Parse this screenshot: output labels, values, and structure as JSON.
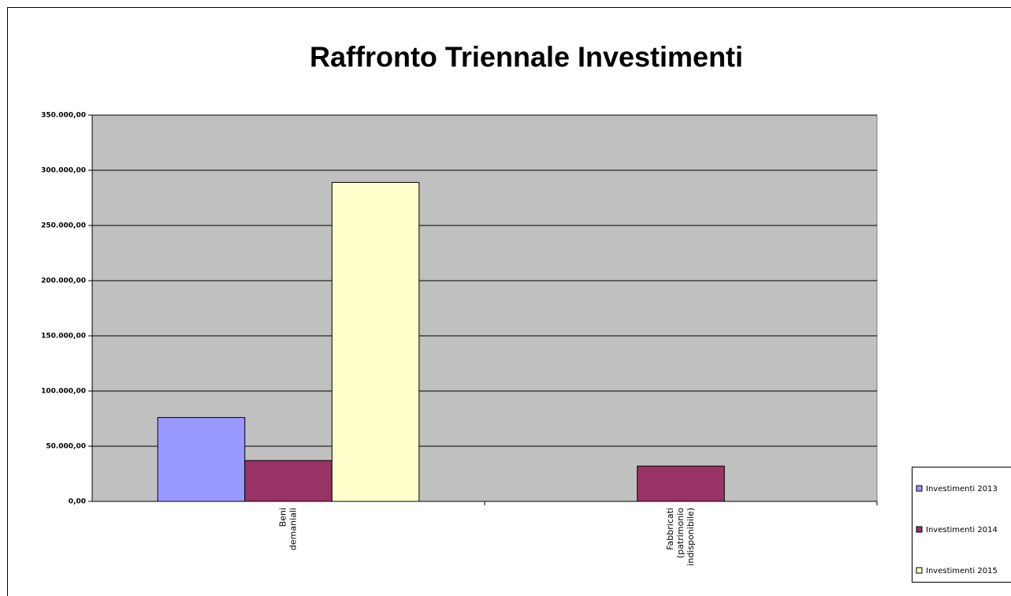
{
  "chart_data": {
    "type": "bar",
    "title": "Raffronto Triennale Investimenti",
    "categories": [
      "Beni demaniali",
      "Fabbricati (patrimonio indisponibile)"
    ],
    "series": [
      {
        "name": "Investimenti 2013",
        "color": "#9999ff",
        "values": [
          76000,
          0
        ]
      },
      {
        "name": "Investimenti 2014",
        "color": "#993366",
        "values": [
          37000,
          32000
        ]
      },
      {
        "name": "Investimenti 2015",
        "color": "#ffffcc",
        "values": [
          289000,
          0
        ]
      }
    ],
    "ylim": [
      0,
      350000
    ],
    "yticks": [
      {
        "value": 0,
        "label": "0,00"
      },
      {
        "value": 50000,
        "label": "50.000,00"
      },
      {
        "value": 100000,
        "label": "100.000,00"
      },
      {
        "value": 150000,
        "label": "150.000,00"
      },
      {
        "value": 200000,
        "label": "200.000,00"
      },
      {
        "value": 250000,
        "label": "250.000,00"
      },
      {
        "value": 300000,
        "label": "300.000,00"
      },
      {
        "value": 350000,
        "label": "350.000,00"
      }
    ],
    "grid": true,
    "legend": "right"
  }
}
